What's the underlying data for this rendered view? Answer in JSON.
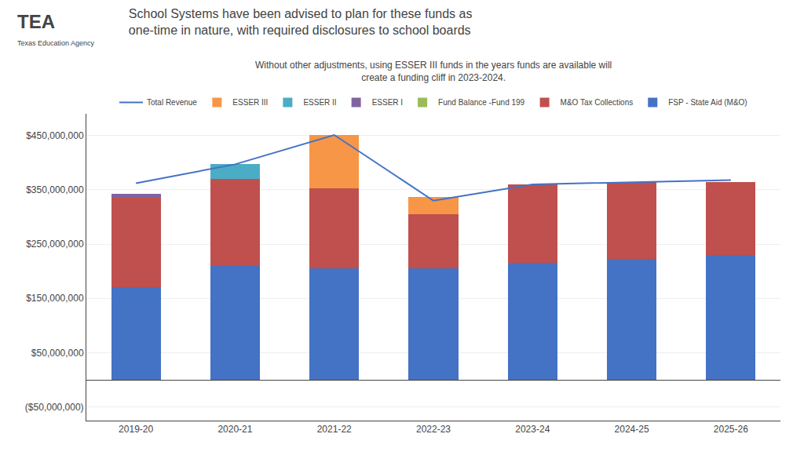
{
  "chart_data": {
    "type": "bar",
    "title": "School Systems have been advised to plan for these funds as\none-time in nature, with required disclosures to school boards",
    "subtitle": "Without other adjustments, using ESSER III funds in the years funds are available will\ncreate a funding cliff in 2023-2024.",
    "annotations": [
      "TEA",
      "Texas Education Agency"
    ],
    "categories": [
      "2019-20",
      "2020-21",
      "2021-22",
      "2022-23",
      "2023-24",
      "2024-25",
      "2025-26"
    ],
    "series": [
      {
        "name": "FSP - State Aid (M&O)",
        "type": "bar",
        "color": "#4472C4",
        "values": [
          170000000,
          210000000,
          205000000,
          205000000,
          215000000,
          222000000,
          230000000
        ]
      },
      {
        "name": "M&O Tax Collections",
        "type": "bar",
        "color": "#C0504D",
        "values": [
          165000000,
          160000000,
          148000000,
          100000000,
          145000000,
          142000000,
          135000000
        ]
      },
      {
        "name": "Fund Balance -Fund 199",
        "type": "bar",
        "color": "#9BBB59",
        "values": [
          0,
          0,
          0,
          0,
          0,
          0,
          0
        ]
      },
      {
        "name": "ESSER I",
        "type": "bar",
        "color": "#8064A2",
        "values": [
          8000000,
          0,
          0,
          0,
          0,
          0,
          0
        ]
      },
      {
        "name": "ESSER II",
        "type": "bar",
        "color": "#4BACC6",
        "values": [
          0,
          27000000,
          0,
          0,
          0,
          0,
          0
        ]
      },
      {
        "name": "ESSER III",
        "type": "bar",
        "color": "#F79646",
        "values": [
          0,
          0,
          98000000,
          32000000,
          0,
          0,
          0
        ]
      },
      {
        "name": "Total Revenue",
        "type": "line",
        "color": "#4472C4",
        "values": [
          362000000,
          397000000,
          451000000,
          330000000,
          360000000,
          364000000,
          368000000
        ]
      }
    ],
    "stacked": true,
    "ylim": [
      -75000000,
      490000000
    ],
    "yticks": [
      {
        "value": -50000000,
        "label": "($50,000,000)"
      },
      {
        "value": 50000000,
        "label": "$50,000,000"
      },
      {
        "value": 150000000,
        "label": "$150,000,000"
      },
      {
        "value": 250000000,
        "label": "$250,000,000"
      },
      {
        "value": 350000000,
        "label": "$350,000,000"
      },
      {
        "value": 450000000,
        "label": "$450,000,000"
      }
    ],
    "grid": true,
    "legend": "top"
  }
}
